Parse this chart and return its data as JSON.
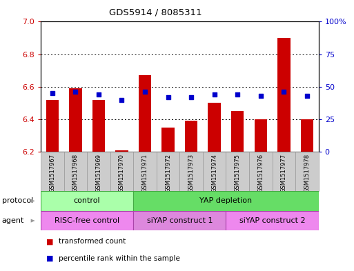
{
  "title": "GDS5914 / 8085311",
  "samples": [
    "GSM1517967",
    "GSM1517968",
    "GSM1517969",
    "GSM1517970",
    "GSM1517971",
    "GSM1517972",
    "GSM1517973",
    "GSM1517974",
    "GSM1517975",
    "GSM1517976",
    "GSM1517977",
    "GSM1517978"
  ],
  "transformed_count": [
    6.52,
    6.59,
    6.52,
    6.21,
    6.67,
    6.35,
    6.39,
    6.5,
    6.45,
    6.4,
    6.9,
    6.4
  ],
  "percentile_rank": [
    45,
    46,
    44,
    40,
    46,
    42,
    42,
    44,
    44,
    43,
    46,
    43
  ],
  "ylim_left": [
    6.2,
    7.0
  ],
  "ylim_right": [
    0,
    100
  ],
  "yticks_left": [
    6.2,
    6.4,
    6.6,
    6.8,
    7.0
  ],
  "yticks_right": [
    0,
    25,
    50,
    75,
    100
  ],
  "bar_color": "#cc0000",
  "dot_color": "#0000cc",
  "bar_bottom": 6.2,
  "protocol_groups": [
    {
      "label": "control",
      "start": 0,
      "end": 3,
      "color": "#aaffaa",
      "edge": "#44aa44"
    },
    {
      "label": "YAP depletion",
      "start": 4,
      "end": 11,
      "color": "#66dd66",
      "edge": "#44aa44"
    }
  ],
  "agent_groups": [
    {
      "label": "RISC-free control",
      "start": 0,
      "end": 3,
      "color": "#ee88ee",
      "edge": "#aa44aa"
    },
    {
      "label": "siYAP construct 1",
      "start": 4,
      "end": 7,
      "color": "#dd88dd",
      "edge": "#aa44aa"
    },
    {
      "label": "siYAP construct 2",
      "start": 8,
      "end": 11,
      "color": "#ee88ee",
      "edge": "#aa44aa"
    }
  ],
  "legend_items": [
    {
      "label": "transformed count",
      "color": "#cc0000"
    },
    {
      "label": "percentile rank within the sample",
      "color": "#0000cc"
    }
  ],
  "left_axis_color": "#cc0000",
  "right_axis_color": "#0000cc",
  "sample_box_color": "#cccccc",
  "sample_box_edge": "#999999",
  "arrow_color": "#999999"
}
